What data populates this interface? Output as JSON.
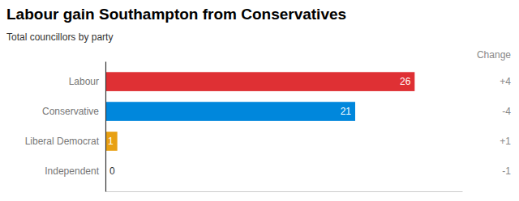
{
  "chart_data": {
    "type": "bar",
    "orientation": "horizontal",
    "title": "Labour gain Southampton from Conservatives",
    "subtitle": "Total councillors by party",
    "categories": [
      "Labour",
      "Conservative",
      "Liberal Democrat",
      "Independent"
    ],
    "values": [
      26,
      21,
      1,
      0
    ],
    "colors": [
      "#df3034",
      "#0087dc",
      "#e8a012",
      "#aaaaaa"
    ],
    "xlim": [
      0,
      30
    ],
    "data_labels": true,
    "tick_labels": "y",
    "grid": false,
    "changes": {
      "label": "Change",
      "values": [
        4,
        -4,
        1,
        -1
      ],
      "value_labels": [
        "+4",
        "-4",
        "+1",
        "-1"
      ]
    }
  }
}
